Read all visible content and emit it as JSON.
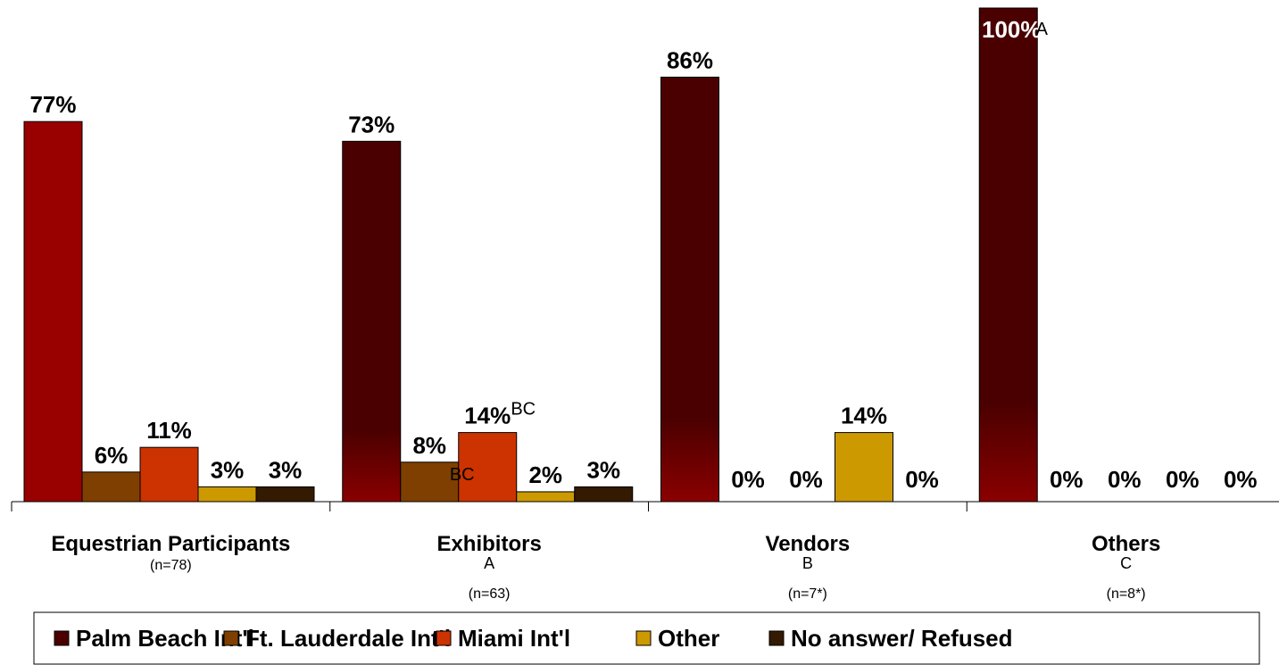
{
  "chart_data": {
    "type": "bar",
    "ylim": [
      0,
      100
    ],
    "grid": false,
    "legend_position": "bottom",
    "categories": [
      "Equestrian Participants",
      "Exhibitors",
      "Vendors",
      "Others"
    ],
    "category_sub_letters": [
      "",
      "A",
      "B",
      "C"
    ],
    "category_n": [
      "(n=78)",
      "(n=63)",
      "(n=7*)",
      "(n=8*)"
    ],
    "series": [
      {
        "name": "Palm Beach Int'l",
        "color": "#4a0000",
        "values": [
          77,
          73,
          86,
          100
        ],
        "labels": [
          "77%",
          "73%",
          "86%",
          "100%"
        ],
        "sup": [
          "",
          "",
          "",
          "A"
        ]
      },
      {
        "name": "Ft. Lauderdale Int'l",
        "color": "#7f3f00",
        "values": [
          6,
          8,
          0,
          0
        ],
        "labels": [
          "6%",
          "8%",
          "0%",
          "0%"
        ],
        "sup": [
          "",
          "BC",
          "",
          ""
        ]
      },
      {
        "name": "Miami Int'l",
        "color": "#cc3300",
        "values": [
          11,
          14,
          0,
          0
        ],
        "labels": [
          "11%",
          "14%",
          "0%",
          "0%"
        ],
        "sup": [
          "",
          "BC",
          "",
          ""
        ]
      },
      {
        "name": "Other",
        "color": "#cc9900",
        "values": [
          3,
          2,
          14,
          0
        ],
        "labels": [
          "3%",
          "2%",
          "14%",
          "0%"
        ],
        "sup": [
          "",
          "",
          "",
          ""
        ]
      },
      {
        "name": "No answer/ Refused",
        "color": "#331a00",
        "values": [
          3,
          3,
          0,
          0
        ],
        "labels": [
          "3%",
          "3%",
          "0%",
          "0%"
        ],
        "sup": [
          "",
          "",
          "",
          ""
        ]
      }
    ],
    "bar_color_overrides": {
      "0-0": "#990000"
    }
  }
}
